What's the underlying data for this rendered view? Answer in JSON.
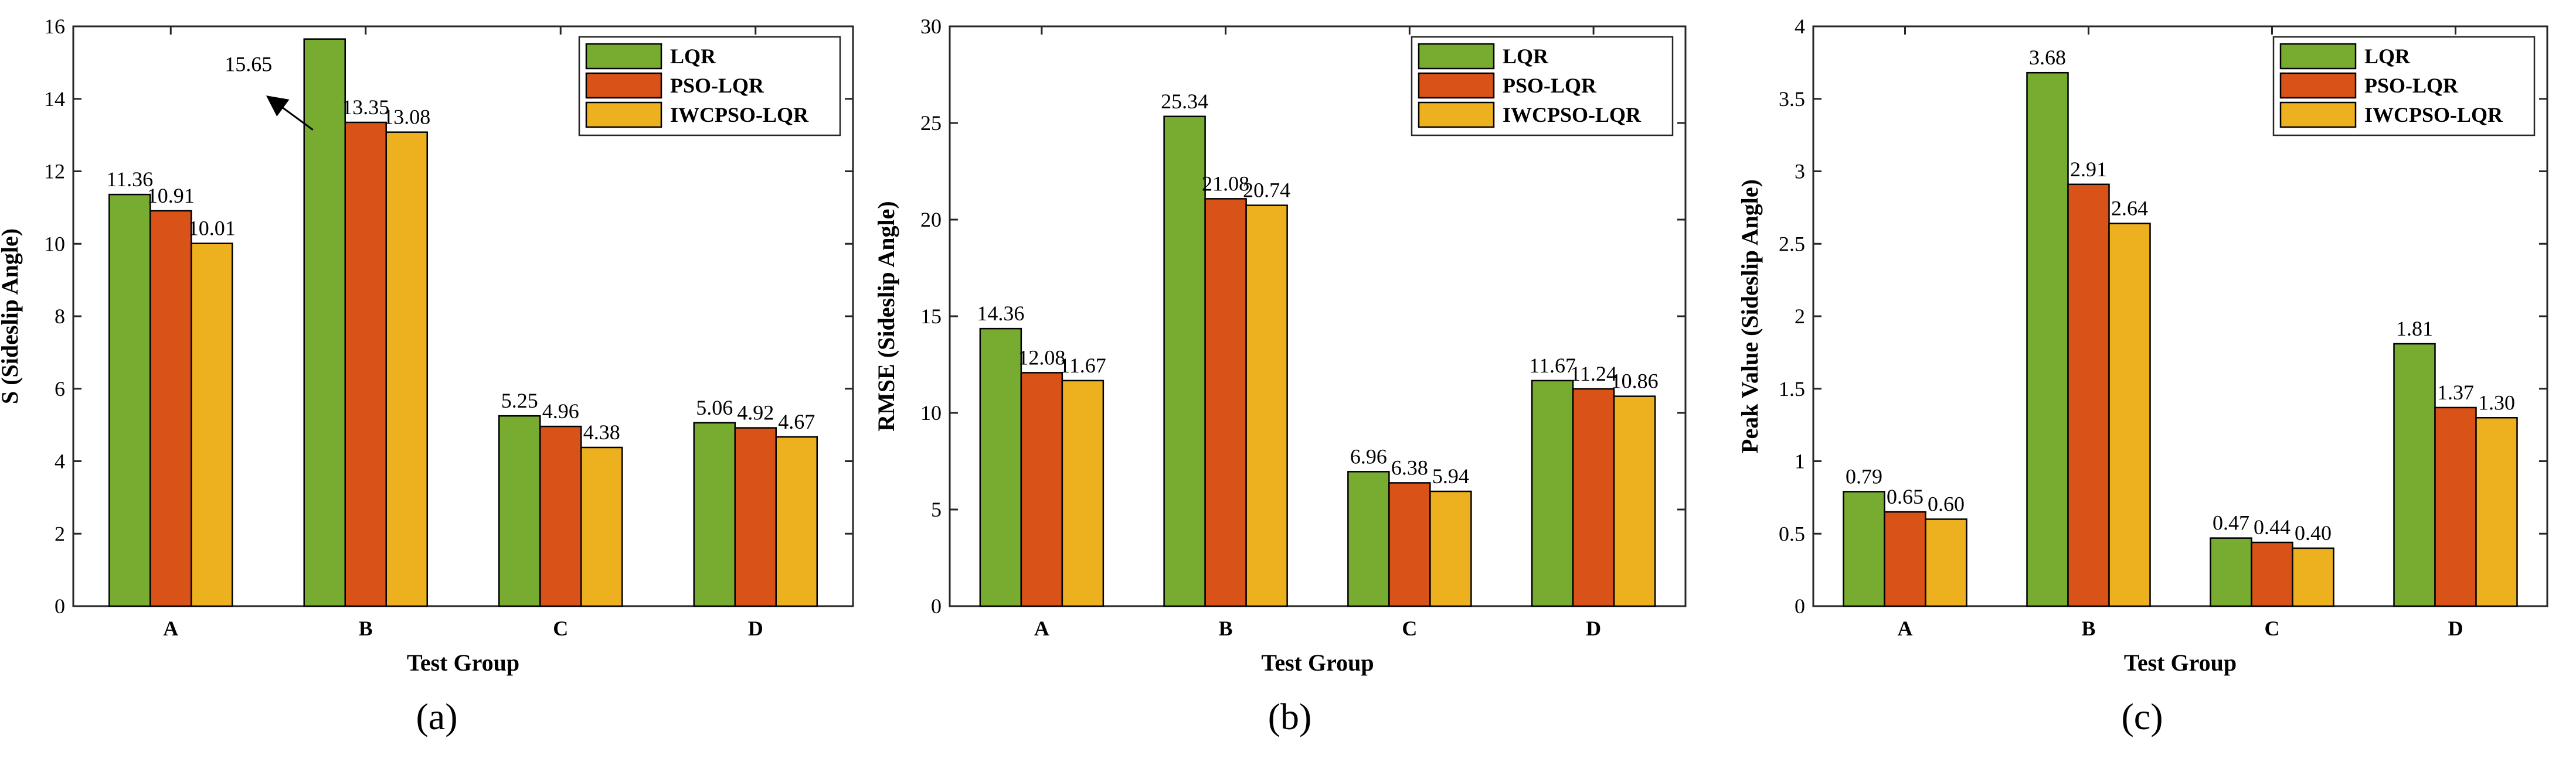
{
  "colors": {
    "LQR": "#77ac30",
    "PSO-LQR": "#d95319",
    "IWCPSO-LQR": "#edb120"
  },
  "chart_data": [
    {
      "type": "bar",
      "caption": "(a)",
      "ylabel": "S (Sideslip Angle)",
      "xlabel": "Test Group",
      "categories": [
        "A",
        "B",
        "C",
        "D"
      ],
      "ylim": [
        0,
        16
      ],
      "yticks": [
        0,
        2,
        4,
        6,
        8,
        10,
        12,
        14,
        16
      ],
      "legend_position": "top-right",
      "series": [
        {
          "name": "LQR",
          "values": [
            11.36,
            15.65,
            5.25,
            5.06
          ],
          "labels": [
            "11.36",
            "15.65",
            "5.25",
            "5.06"
          ]
        },
        {
          "name": "PSO-LQR",
          "values": [
            10.91,
            13.35,
            4.96,
            4.92
          ],
          "labels": [
            "10.91",
            "13.35",
            "4.96",
            "4.92"
          ]
        },
        {
          "name": "IWCPSO-LQR",
          "values": [
            10.01,
            13.08,
            4.38,
            4.67
          ],
          "labels": [
            "10.01",
            "13.08",
            "4.38",
            "4.67"
          ]
        }
      ],
      "annotation": {
        "text": "15.65",
        "category": "B",
        "series": "LQR",
        "arrow": true
      }
    },
    {
      "type": "bar",
      "caption": "(b)",
      "ylabel": "RMSE (Sideslip Angle)",
      "xlabel": "Test Group",
      "categories": [
        "A",
        "B",
        "C",
        "D"
      ],
      "ylim": [
        0,
        30
      ],
      "yticks": [
        0,
        5,
        10,
        15,
        20,
        25,
        30
      ],
      "legend_position": "top-right",
      "series": [
        {
          "name": "LQR",
          "values": [
            14.36,
            25.34,
            6.96,
            11.67
          ],
          "labels": [
            "14.36",
            "25.34",
            "6.96",
            "11.67"
          ]
        },
        {
          "name": "PSO-LQR",
          "values": [
            12.08,
            21.08,
            6.38,
            11.24
          ],
          "labels": [
            "12.08",
            "21.08",
            "6.38",
            "11.24"
          ]
        },
        {
          "name": "IWCPSO-LQR",
          "values": [
            11.67,
            20.74,
            5.94,
            10.86
          ],
          "labels": [
            "11.67",
            "20.74",
            "5.94",
            "10.86"
          ]
        }
      ]
    },
    {
      "type": "bar",
      "caption": "(c)",
      "ylabel": "Peak Value (Sideslip Angle)",
      "xlabel": "Test Group",
      "categories": [
        "A",
        "B",
        "C",
        "D"
      ],
      "ylim": [
        0,
        4
      ],
      "yticks": [
        0,
        0.5,
        1,
        1.5,
        2,
        2.5,
        3,
        3.5,
        4
      ],
      "legend_position": "top-right",
      "series": [
        {
          "name": "LQR",
          "values": [
            0.79,
            3.68,
            0.47,
            1.81
          ],
          "labels": [
            "0.79",
            "3.68",
            "0.47",
            "1.81"
          ]
        },
        {
          "name": "PSO-LQR",
          "values": [
            0.65,
            2.91,
            0.44,
            1.37
          ],
          "labels": [
            "0.65",
            "2.91",
            "0.44",
            "1.37"
          ]
        },
        {
          "name": "IWCPSO-LQR",
          "values": [
            0.6,
            2.64,
            0.4,
            1.3
          ],
          "labels": [
            "0.60",
            "2.64",
            "0.40",
            "1.30"
          ]
        }
      ]
    }
  ]
}
